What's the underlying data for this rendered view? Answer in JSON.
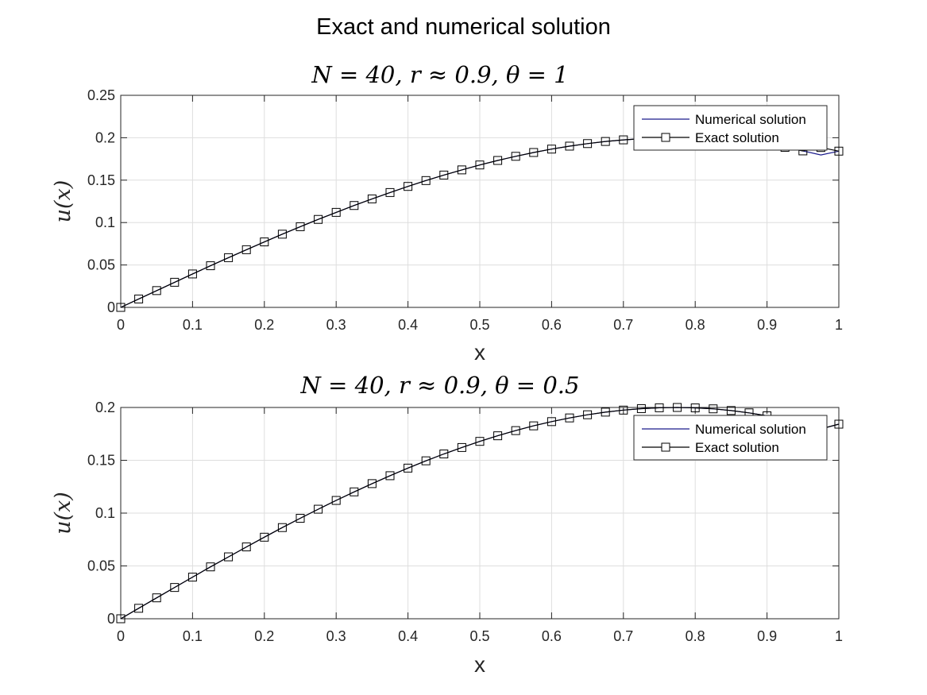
{
  "figure": {
    "suptitle": "Exact and numerical solution"
  },
  "chart_data": [
    {
      "type": "line",
      "title": "N = 40, r ≈ 0.9, θ = 1",
      "xlabel": "x",
      "ylabel": "u(x)",
      "xlim": [
        0,
        1
      ],
      "ylim": [
        0,
        0.25
      ],
      "xticks": [
        "0",
        "0.1",
        "0.2",
        "0.3",
        "0.4",
        "0.5",
        "0.6",
        "0.7",
        "0.8",
        "0.9",
        "1"
      ],
      "yticks": [
        "0",
        "0.05",
        "0.1",
        "0.15",
        "0.2",
        "0.25"
      ],
      "grid": true,
      "legend": {
        "placement": "top-right",
        "entries": [
          "Numerical solution",
          "Exact solution"
        ]
      },
      "x": [
        0,
        0.025,
        0.05,
        0.075,
        0.1,
        0.125,
        0.15,
        0.175,
        0.2,
        0.225,
        0.25,
        0.275,
        0.3,
        0.325,
        0.35,
        0.375,
        0.4,
        0.425,
        0.45,
        0.475,
        0.5,
        0.525,
        0.55,
        0.575,
        0.6,
        0.625,
        0.65,
        0.675,
        0.7,
        0.725,
        0.75,
        0.775,
        0.8,
        0.825,
        0.85,
        0.875,
        0.9,
        0.925,
        0.95,
        0.975,
        1
      ],
      "series": [
        {
          "name": "Numerical solution",
          "color": "#1a1a8c",
          "marker": "none",
          "values": [
            0,
            0.0099,
            0.0198,
            0.0296,
            0.0394,
            0.0491,
            0.0586,
            0.068,
            0.0772,
            0.0863,
            0.0951,
            0.1037,
            0.112,
            0.1201,
            0.1279,
            0.1354,
            0.1426,
            0.1495,
            0.156,
            0.1621,
            0.1679,
            0.1732,
            0.1781,
            0.1826,
            0.1866,
            0.1901,
            0.1931,
            0.1956,
            0.1975,
            0.1989,
            0.1997,
            0.2,
            0.1996,
            0.1987,
            0.1971,
            0.1949,
            0.1921,
            0.1886,
            0.1845,
            0.1797,
            0.1842
          ]
        },
        {
          "name": "Exact solution",
          "color": "#000000",
          "marker": "square",
          "values": [
            0,
            0.0099,
            0.0198,
            0.0296,
            0.0394,
            0.0491,
            0.0586,
            0.068,
            0.0772,
            0.0863,
            0.0951,
            0.1037,
            0.112,
            0.1201,
            0.1279,
            0.1354,
            0.1426,
            0.1495,
            0.156,
            0.1621,
            0.1679,
            0.1732,
            0.1781,
            0.1826,
            0.1866,
            0.1901,
            0.1931,
            0.1956,
            0.1975,
            0.1989,
            0.1997,
            0.2,
            0.1996,
            0.1987,
            0.1971,
            0.1949,
            0.1921,
            0.1886,
            0.1845,
            0.1885,
            0.1842
          ]
        }
      ]
    },
    {
      "type": "line",
      "title": "N = 40, r ≈ 0.9, θ = 0.5",
      "xlabel": "x",
      "ylabel": "u(x)",
      "xlim": [
        0,
        1
      ],
      "ylim": [
        0,
        0.2
      ],
      "xticks": [
        "0",
        "0.1",
        "0.2",
        "0.3",
        "0.4",
        "0.5",
        "0.6",
        "0.7",
        "0.8",
        "0.9",
        "1"
      ],
      "yticks": [
        "0",
        "0.05",
        "0.1",
        "0.15",
        "0.2"
      ],
      "grid": true,
      "legend": {
        "placement": "top-right",
        "entries": [
          "Numerical solution",
          "Exact solution"
        ]
      },
      "x": [
        0,
        0.025,
        0.05,
        0.075,
        0.1,
        0.125,
        0.15,
        0.175,
        0.2,
        0.225,
        0.25,
        0.275,
        0.3,
        0.325,
        0.35,
        0.375,
        0.4,
        0.425,
        0.45,
        0.475,
        0.5,
        0.525,
        0.55,
        0.575,
        0.6,
        0.625,
        0.65,
        0.675,
        0.7,
        0.725,
        0.75,
        0.775,
        0.8,
        0.825,
        0.85,
        0.875,
        0.9,
        0.925,
        0.95,
        0.975,
        1
      ],
      "series": [
        {
          "name": "Numerical solution",
          "color": "#1a1a8c",
          "marker": "none",
          "values": [
            0,
            0.0099,
            0.0198,
            0.0296,
            0.0394,
            0.0491,
            0.0586,
            0.068,
            0.0772,
            0.0863,
            0.0951,
            0.1037,
            0.112,
            0.1201,
            0.1279,
            0.1354,
            0.1426,
            0.1495,
            0.156,
            0.1621,
            0.1679,
            0.1732,
            0.1781,
            0.1826,
            0.1866,
            0.1901,
            0.1931,
            0.1956,
            0.1975,
            0.1989,
            0.1997,
            0.2,
            0.1996,
            0.1987,
            0.1971,
            0.1949,
            0.1921,
            0.1886,
            0.1845,
            0.1797,
            0.1842
          ]
        },
        {
          "name": "Exact solution",
          "color": "#000000",
          "marker": "square",
          "values": [
            0,
            0.0099,
            0.0198,
            0.0296,
            0.0394,
            0.0491,
            0.0586,
            0.068,
            0.0772,
            0.0863,
            0.0951,
            0.1037,
            0.112,
            0.1201,
            0.1279,
            0.1354,
            0.1426,
            0.1495,
            0.156,
            0.1621,
            0.1679,
            0.1732,
            0.1781,
            0.1826,
            0.1866,
            0.1901,
            0.1931,
            0.1956,
            0.1975,
            0.1989,
            0.1997,
            0.2,
            0.1996,
            0.1987,
            0.1971,
            0.1949,
            0.1921,
            0.1886,
            0.1845,
            0.1797,
            0.1842
          ]
        }
      ]
    }
  ]
}
